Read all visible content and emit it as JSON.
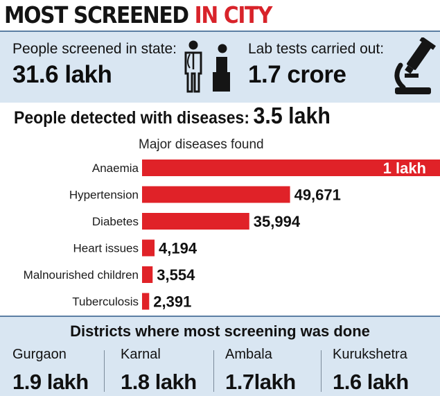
{
  "header": {
    "title_part1": "MOST SCREENED",
    "title_part2": "IN CITY",
    "accent_color": "#d8232a"
  },
  "stats": {
    "screened_label": "People screened in state:",
    "screened_value": "31.6 lakh",
    "screened_icon": "doctor-patient-icon",
    "lab_label": "Lab tests carried out:",
    "lab_value": "1.7 crore",
    "lab_icon": "microscope-icon"
  },
  "detected": {
    "label": "People detected with diseases:",
    "value": "3.5 lakh"
  },
  "chart_data": {
    "type": "bar",
    "orientation": "horizontal",
    "title": "Major diseases found",
    "categories": [
      "Anaemia",
      "Hypertension",
      "Diabetes",
      "Heart issues",
      "Malnourished children",
      "Tuberculosis"
    ],
    "values": [
      100000,
      49671,
      35994,
      4194,
      3554,
      2391
    ],
    "value_labels": [
      "1 lakh",
      "49,671",
      "35,994",
      "4,194",
      "3,554",
      "2,391"
    ],
    "bar_color": "#e02228",
    "grid": false,
    "legend": "none"
  },
  "districts": {
    "title": "Districts where most screening was done",
    "items": [
      {
        "name": "Gurgaon",
        "value": "1.9 lakh"
      },
      {
        "name": "Karnal",
        "value": "1.8 lakh"
      },
      {
        "name": "Ambala",
        "value": "1.7lakh"
      },
      {
        "name": "Kurukshetra",
        "value": "1.6 lakh"
      }
    ]
  }
}
